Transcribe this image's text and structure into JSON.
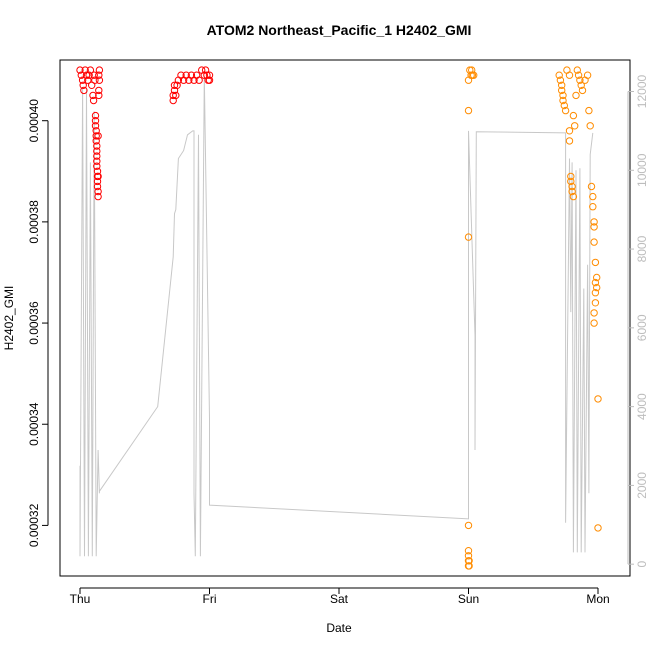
{
  "chart_data": {
    "type": "scatter",
    "title": "ATOM2 Northeast_Pacific_1 H2402_GMI",
    "xlabel": "Date",
    "ylabel": "H2402_GMI",
    "x_ticks": [
      "Thu",
      "Fri",
      "Sat",
      "Sun",
      "Mon"
    ],
    "x_range_days": [
      0,
      4
    ],
    "ylim": [
      0.00031,
      0.000412
    ],
    "y_ticks": [
      "0.00032",
      "0.00034",
      "0.00036",
      "0.00038",
      "0.00040"
    ],
    "y_tick_values": [
      0.00032,
      0.00034,
      0.00036,
      0.00038,
      0.0004
    ],
    "ylim_right": [
      -300,
      12800
    ],
    "y_ticks_right": [
      "0",
      "2000",
      "4000",
      "6000",
      "8000",
      "10000",
      "12000"
    ],
    "y_tick_values_right": [
      0,
      2000,
      4000,
      6000,
      8000,
      10000,
      12000
    ],
    "grid": false,
    "series": [
      {
        "color": "#ff0000",
        "marker": "open-circle",
        "points": [
          [
            0.0,
            0.00041
          ],
          [
            0.01,
            0.000409
          ],
          [
            0.02,
            0.000408
          ],
          [
            0.025,
            0.000407
          ],
          [
            0.03,
            0.000406
          ],
          [
            0.04,
            0.00041
          ],
          [
            0.05,
            0.000409
          ],
          [
            0.06,
            0.000408
          ],
          [
            0.07,
            0.000409
          ],
          [
            0.08,
            0.00041
          ],
          [
            0.09,
            0.000407
          ],
          [
            0.1,
            0.000405
          ],
          [
            0.105,
            0.000404
          ],
          [
            0.11,
            0.000409
          ],
          [
            0.115,
            0.000408
          ],
          [
            0.12,
            0.000401
          ],
          [
            0.12,
            0.0004
          ],
          [
            0.12,
            0.000399
          ],
          [
            0.125,
            0.000398
          ],
          [
            0.125,
            0.000397
          ],
          [
            0.125,
            0.000396
          ],
          [
            0.13,
            0.000395
          ],
          [
            0.13,
            0.000394
          ],
          [
            0.13,
            0.000393
          ],
          [
            0.13,
            0.000392
          ],
          [
            0.13,
            0.000391
          ],
          [
            0.135,
            0.00039
          ],
          [
            0.135,
            0.000389
          ],
          [
            0.135,
            0.000388
          ],
          [
            0.135,
            0.000387
          ],
          [
            0.14,
            0.000386
          ],
          [
            0.14,
            0.000385
          ],
          [
            0.14,
            0.000389
          ],
          [
            0.14,
            0.000397
          ],
          [
            0.145,
            0.000406
          ],
          [
            0.145,
            0.000405
          ],
          [
            0.145,
            0.000409
          ],
          [
            0.15,
            0.00041
          ],
          [
            0.15,
            0.000408
          ],
          [
            0.72,
            0.000404
          ],
          [
            0.72,
            0.000405
          ],
          [
            0.73,
            0.000406
          ],
          [
            0.73,
            0.000407
          ],
          [
            0.74,
            0.000405
          ],
          [
            0.75,
            0.000407
          ],
          [
            0.76,
            0.000408
          ],
          [
            0.78,
            0.000409
          ],
          [
            0.8,
            0.000408
          ],
          [
            0.82,
            0.000409
          ],
          [
            0.84,
            0.000408
          ],
          [
            0.86,
            0.000409
          ],
          [
            0.88,
            0.000408
          ],
          [
            0.9,
            0.000409
          ],
          [
            0.92,
            0.000408
          ],
          [
            0.94,
            0.00041
          ],
          [
            0.96,
            0.000409
          ],
          [
            0.97,
            0.00041
          ],
          [
            0.98,
            0.000409
          ],
          [
            0.99,
            0.000408
          ],
          [
            1.0,
            0.000409
          ],
          [
            1.0,
            0.000408
          ]
        ]
      },
      {
        "color": "#ff8c00",
        "marker": "open-circle",
        "points": [
          [
            3.0,
            0.000408
          ],
          [
            3.0,
            0.000402
          ],
          [
            3.0,
            0.000377
          ],
          [
            3.0,
            0.00032
          ],
          [
            3.0,
            0.000315
          ],
          [
            3.0,
            0.000314
          ],
          [
            3.0,
            0.000313
          ],
          [
            3.0,
            0.000312
          ],
          [
            3.005,
            0.000313
          ],
          [
            3.005,
            0.000312
          ],
          [
            3.01,
            0.00041
          ],
          [
            3.02,
            0.000409
          ],
          [
            3.025,
            0.00041
          ],
          [
            3.03,
            0.000409
          ],
          [
            3.04,
            0.000409
          ],
          [
            3.7,
            0.000409
          ],
          [
            3.71,
            0.000408
          ],
          [
            3.72,
            0.000407
          ],
          [
            3.72,
            0.000406
          ],
          [
            3.73,
            0.000405
          ],
          [
            3.73,
            0.000404
          ],
          [
            3.74,
            0.000403
          ],
          [
            3.75,
            0.000402
          ],
          [
            3.76,
            0.00041
          ],
          [
            3.78,
            0.000409
          ],
          [
            3.78,
            0.000398
          ],
          [
            3.78,
            0.000396
          ],
          [
            3.79,
            0.000389
          ],
          [
            3.79,
            0.000388
          ],
          [
            3.8,
            0.000387
          ],
          [
            3.8,
            0.000386
          ],
          [
            3.81,
            0.000385
          ],
          [
            3.81,
            0.000401
          ],
          [
            3.82,
            0.000399
          ],
          [
            3.83,
            0.000405
          ],
          [
            3.84,
            0.00041
          ],
          [
            3.85,
            0.000409
          ],
          [
            3.86,
            0.000408
          ],
          [
            3.87,
            0.000407
          ],
          [
            3.88,
            0.000406
          ],
          [
            3.9,
            0.000408
          ],
          [
            3.92,
            0.000409
          ],
          [
            3.93,
            0.000402
          ],
          [
            3.94,
            0.000399
          ],
          [
            3.95,
            0.000387
          ],
          [
            3.96,
            0.000385
          ],
          [
            3.96,
            0.000383
          ],
          [
            3.97,
            0.00038
          ],
          [
            3.97,
            0.000379
          ],
          [
            3.97,
            0.000376
          ],
          [
            3.98,
            0.000372
          ],
          [
            3.98,
            0.000368
          ],
          [
            3.98,
            0.000366
          ],
          [
            3.98,
            0.000364
          ],
          [
            3.97,
            0.000362
          ],
          [
            3.97,
            0.00036
          ],
          [
            3.99,
            0.000369
          ],
          [
            3.99,
            0.000367
          ],
          [
            4.0,
            0.000345
          ],
          [
            4.0,
            0.0003195
          ]
        ]
      }
    ],
    "line_series": {
      "color": "#c8c8c8",
      "axis": "right",
      "points": [
        [
          0.0,
          2500
        ],
        [
          0.0,
          200
        ],
        [
          0.02,
          12100
        ],
        [
          0.035,
          200
        ],
        [
          0.05,
          12050
        ],
        [
          0.065,
          200
        ],
        [
          0.08,
          10200
        ],
        [
          0.095,
          200
        ],
        [
          0.11,
          11500
        ],
        [
          0.125,
          200
        ],
        [
          0.14,
          2900
        ],
        [
          0.15,
          1800
        ],
        [
          0.15,
          1850
        ],
        [
          0.6,
          4000
        ],
        [
          0.72,
          7800
        ],
        [
          0.73,
          8900
        ],
        [
          0.74,
          9000
        ],
        [
          0.76,
          10300
        ],
        [
          0.8,
          10500
        ],
        [
          0.83,
          10900
        ],
        [
          0.87,
          11000
        ],
        [
          0.88,
          11000
        ],
        [
          0.88,
          1800
        ],
        [
          0.89,
          200
        ],
        [
          0.915,
          10900
        ],
        [
          0.93,
          200
        ],
        [
          0.96,
          12400
        ],
        [
          1.0,
          3700
        ],
        [
          1.0,
          1500
        ],
        [
          3.0,
          1150
        ],
        [
          3.0,
          11000
        ],
        [
          3.05,
          5800
        ],
        [
          3.05,
          2900
        ],
        [
          3.06,
          10980
        ],
        [
          3.75,
          10950
        ],
        [
          3.75,
          1050
        ],
        [
          3.78,
          10300
        ],
        [
          3.79,
          6400
        ],
        [
          3.8,
          10200
        ],
        [
          3.81,
          300
        ],
        [
          3.83,
          10000
        ],
        [
          3.84,
          300
        ],
        [
          3.86,
          10050
        ],
        [
          3.87,
          300
        ],
        [
          3.89,
          7000
        ],
        [
          3.9,
          300
        ],
        [
          3.92,
          7600
        ],
        [
          3.93,
          1800
        ],
        [
          3.94,
          10400
        ],
        [
          3.96,
          10950
        ]
      ]
    }
  }
}
